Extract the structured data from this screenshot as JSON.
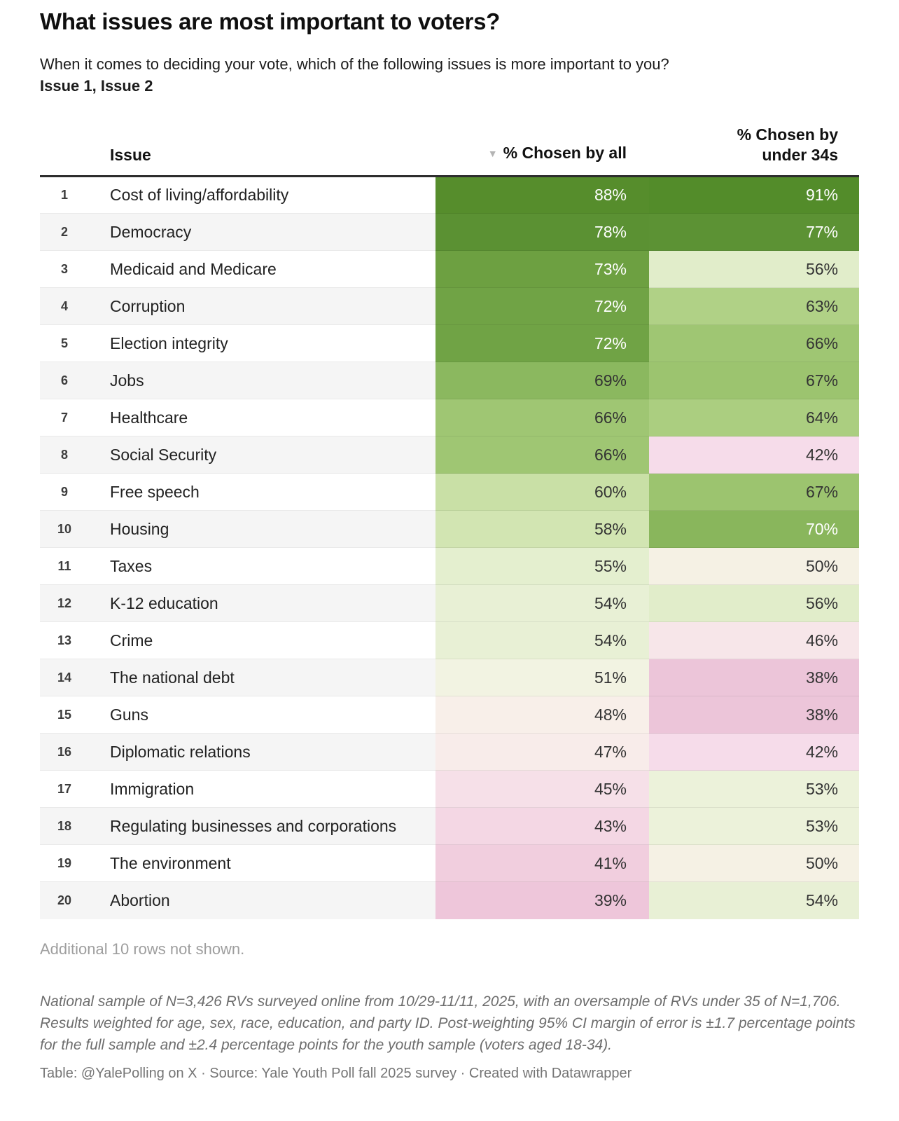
{
  "header": {
    "title": "What issues are most important to voters?",
    "subtitle": "When it comes to deciding your vote, which of the following issues is more important to you?",
    "subtitle_bold": "Issue 1, Issue 2"
  },
  "table": {
    "sort_icon": "▼",
    "columns": {
      "issue": "Issue",
      "all": "% Chosen by all",
      "under34_line1": "% Chosen by",
      "under34_line2": "under 34s"
    },
    "rows": [
      {
        "rank": "1",
        "issue": "Cost of living/affordability",
        "all": {
          "label": "88%",
          "bg": "#568d2c",
          "fg": "#ffffff"
        },
        "under34": {
          "label": "91%",
          "bg": "#538c2a",
          "fg": "#ffffff"
        }
      },
      {
        "rank": "2",
        "issue": "Democracy",
        "all": {
          "label": "78%",
          "bg": "#5b9133",
          "fg": "#ffffff"
        },
        "under34": {
          "label": "77%",
          "bg": "#5c9234",
          "fg": "#ffffff"
        }
      },
      {
        "rank": "3",
        "issue": "Medicaid and Medicare",
        "all": {
          "label": "73%",
          "bg": "#6da041",
          "fg": "#ffffff"
        },
        "under34": {
          "label": "56%",
          "bg": "#e1edca",
          "fg": "#333333"
        }
      },
      {
        "rank": "4",
        "issue": "Corruption",
        "all": {
          "label": "72%",
          "bg": "#70a345",
          "fg": "#ffffff"
        },
        "under34": {
          "label": "63%",
          "bg": "#b0d186",
          "fg": "#333333"
        }
      },
      {
        "rank": "5",
        "issue": "Election integrity",
        "all": {
          "label": "72%",
          "bg": "#70a345",
          "fg": "#ffffff"
        },
        "under34": {
          "label": "66%",
          "bg": "#9fc673",
          "fg": "#333333"
        }
      },
      {
        "rank": "6",
        "issue": "Jobs",
        "all": {
          "label": "69%",
          "bg": "#8bb85f",
          "fg": "#333333"
        },
        "under34": {
          "label": "67%",
          "bg": "#9cc46f",
          "fg": "#333333"
        }
      },
      {
        "rank": "7",
        "issue": "Healthcare",
        "all": {
          "label": "66%",
          "bg": "#9fc673",
          "fg": "#333333"
        },
        "under34": {
          "label": "64%",
          "bg": "#abce80",
          "fg": "#333333"
        }
      },
      {
        "rank": "8",
        "issue": "Social Security",
        "all": {
          "label": "66%",
          "bg": "#9fc673",
          "fg": "#333333"
        },
        "under34": {
          "label": "42%",
          "bg": "#f6dcEA",
          "fg": "#333333"
        }
      },
      {
        "rank": "9",
        "issue": "Free speech",
        "all": {
          "label": "60%",
          "bg": "#c9e0a6",
          "fg": "#333333"
        },
        "under34": {
          "label": "67%",
          "bg": "#9cc46f",
          "fg": "#333333"
        }
      },
      {
        "rank": "10",
        "issue": "Housing",
        "all": {
          "label": "58%",
          "bg": "#d2e5b2",
          "fg": "#333333"
        },
        "under34": {
          "label": "70%",
          "bg": "#89b65c",
          "fg": "#ffffff"
        }
      },
      {
        "rank": "11",
        "issue": "Taxes",
        "all": {
          "label": "55%",
          "bg": "#e4efcf",
          "fg": "#333333"
        },
        "under34": {
          "label": "50%",
          "bg": "#f5f1e4",
          "fg": "#333333"
        }
      },
      {
        "rank": "12",
        "issue": "K-12 education",
        "all": {
          "label": "54%",
          "bg": "#e8f0d5",
          "fg": "#333333"
        },
        "under34": {
          "label": "56%",
          "bg": "#e1edca",
          "fg": "#333333"
        }
      },
      {
        "rank": "13",
        "issue": "Crime",
        "all": {
          "label": "54%",
          "bg": "#e8f0d5",
          "fg": "#333333"
        },
        "under34": {
          "label": "46%",
          "bg": "#f7e6e9",
          "fg": "#333333"
        }
      },
      {
        "rank": "14",
        "issue": "The national debt",
        "all": {
          "label": "51%",
          "bg": "#f2f3e2",
          "fg": "#333333"
        },
        "under34": {
          "label": "38%",
          "bg": "#ecc5d9",
          "fg": "#333333"
        }
      },
      {
        "rank": "15",
        "issue": "Guns",
        "all": {
          "label": "48%",
          "bg": "#f8efe9",
          "fg": "#333333"
        },
        "under34": {
          "label": "38%",
          "bg": "#ecc5d9",
          "fg": "#333333"
        }
      },
      {
        "rank": "16",
        "issue": "Diplomatic relations",
        "all": {
          "label": "47%",
          "bg": "#f8ecea",
          "fg": "#333333"
        },
        "under34": {
          "label": "42%",
          "bg": "#f6dcea",
          "fg": "#333333"
        }
      },
      {
        "rank": "17",
        "issue": "Immigration",
        "all": {
          "label": "45%",
          "bg": "#f6e0e8",
          "fg": "#333333"
        },
        "under34": {
          "label": "53%",
          "bg": "#ecf2da",
          "fg": "#333333"
        }
      },
      {
        "rank": "18",
        "issue": "Regulating businesses and corporations",
        "all": {
          "label": "43%",
          "bg": "#f4d7e4",
          "fg": "#333333"
        },
        "under34": {
          "label": "53%",
          "bg": "#ecf2da",
          "fg": "#333333"
        }
      },
      {
        "rank": "19",
        "issue": "The environment",
        "all": {
          "label": "41%",
          "bg": "#f1cede",
          "fg": "#333333"
        },
        "under34": {
          "label": "50%",
          "bg": "#f5f1e4",
          "fg": "#333333"
        }
      },
      {
        "rank": "20",
        "issue": "Abortion",
        "all": {
          "label": "39%",
          "bg": "#eec6da",
          "fg": "#333333"
        },
        "under34": {
          "label": "54%",
          "bg": "#e8f0d5",
          "fg": "#333333"
        }
      }
    ]
  },
  "notes": {
    "additional_rows": "Additional 10 rows not shown.",
    "methodology": "National sample of N=3,426 RVs surveyed online from 10/29-11/11, 2025, with an oversample of RVs under 35 of N=1,706. Results weighted for age, sex, race, education, and party ID. Post-weighting 95% CI margin of error is ±1.7 percentage points for the full sample and ±2.4 percentage points for the youth sample (voters aged 18-34).",
    "attribution": "Table: @YalePolling on X · Source: Yale Youth Poll fall 2025 survey · Created with Datawrapper"
  },
  "colors": {
    "header_border": "#2d2d2d",
    "zebra_stripe": "#f5f5f5",
    "green_max": "#538c2a",
    "neutral": "#f5f1e4",
    "pink_max": "#ecc5d9"
  },
  "chart_data": {
    "type": "table",
    "title": "What issues are most important to voters?",
    "subtitle": "When it comes to deciding your vote, which of the following issues is more important to you? Issue 1, Issue 2",
    "columns": [
      "Issue",
      "% Chosen by all",
      "% Chosen by under 34s"
    ],
    "categories": [
      "Cost of living/affordability",
      "Democracy",
      "Medicaid and Medicare",
      "Corruption",
      "Election integrity",
      "Jobs",
      "Healthcare",
      "Social Security",
      "Free speech",
      "Housing",
      "Taxes",
      "K-12 education",
      "Crime",
      "The national debt",
      "Guns",
      "Diplomatic relations",
      "Immigration",
      "Regulating businesses and corporations",
      "The environment",
      "Abortion"
    ],
    "series": [
      {
        "name": "% Chosen by all",
        "values": [
          88,
          78,
          73,
          72,
          72,
          69,
          66,
          66,
          60,
          58,
          55,
          54,
          54,
          51,
          48,
          47,
          45,
          43,
          41,
          39
        ]
      },
      {
        "name": "% Chosen by under 34s",
        "values": [
          91,
          77,
          56,
          63,
          66,
          67,
          64,
          42,
          67,
          70,
          50,
          56,
          46,
          38,
          38,
          42,
          53,
          53,
          50,
          54
        ]
      }
    ],
    "sorted_by": "% Chosen by all",
    "sort_order": "descending",
    "color_scale": "diverging pink-green heatmap, neutral near 50%"
  }
}
